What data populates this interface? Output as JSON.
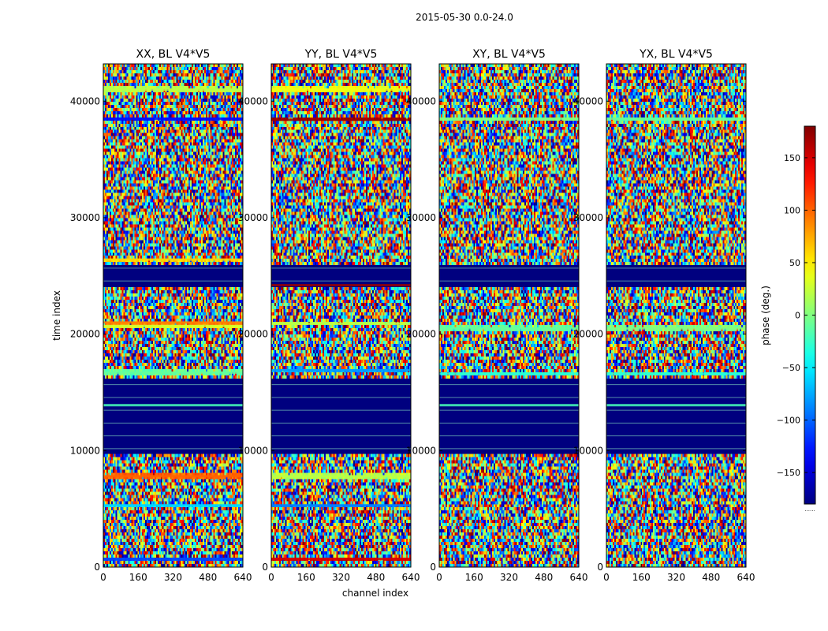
{
  "figure": {
    "suptitle": "2015-05-30 0.0-24.0"
  },
  "chart_data": {
    "type": "heatmap",
    "quantity": "phase",
    "xlabel": "channel index",
    "ylabel": "time index",
    "xlim": [
      0,
      640
    ],
    "ylim": [
      0,
      43200
    ],
    "xticks": [
      0,
      160,
      320,
      480,
      640
    ],
    "yticks": [
      0,
      10000,
      20000,
      30000,
      40000
    ],
    "colormap": "jet",
    "colorbar": {
      "label": "phase (deg.)",
      "range": [
        -180,
        180
      ],
      "ticks": [
        -150,
        -100,
        -50,
        0,
        50,
        100,
        150
      ],
      "tick_labels": [
        "−150",
        "−100",
        "−50",
        "0",
        "50",
        "100",
        "150"
      ],
      "extra_label": "......"
    },
    "masked_value_color": "#00007f",
    "masked_time_ranges": [
      [
        9700,
        16200
      ],
      [
        24100,
        26000
      ]
    ],
    "panels": [
      {
        "title": "XX, BL V4*V5",
        "polarization": "XX",
        "stripes": [
          {
            "t": 41000,
            "phase": 20
          },
          {
            "t": 38500,
            "phase": -130
          },
          {
            "t": 26400,
            "phase": 60
          },
          {
            "t": 21000,
            "phase": 90
          },
          {
            "t": 20700,
            "phase": 30
          },
          {
            "t": 16700,
            "phase": -10
          },
          {
            "t": 13900,
            "phase": -20
          },
          {
            "t": 7800,
            "phase": 100
          },
          {
            "t": 5300,
            "phase": -60
          },
          {
            "t": 700,
            "phase": -110
          }
        ]
      },
      {
        "title": "YY, BL V4*V5",
        "polarization": "YY",
        "stripes": [
          {
            "t": 41000,
            "phase": 40
          },
          {
            "t": 38400,
            "phase": 170
          },
          {
            "t": 24200,
            "phase": 170
          },
          {
            "t": 20900,
            "phase": 20
          },
          {
            "t": 16900,
            "phase": -80
          },
          {
            "t": 7800,
            "phase": 20
          },
          {
            "t": 5300,
            "phase": -90
          },
          {
            "t": 700,
            "phase": 150
          }
        ]
      },
      {
        "title": "XY, BL V4*V5",
        "polarization": "XY",
        "stripes": [
          {
            "t": 38500,
            "phase": 0
          },
          {
            "t": 20500,
            "phase": -10
          },
          {
            "t": 16600,
            "phase": -30
          },
          {
            "t": 13900,
            "phase": -20
          }
        ]
      },
      {
        "title": "YX, BL V4*V5",
        "polarization": "YX",
        "stripes": [
          {
            "t": 38500,
            "phase": -10
          },
          {
            "t": 20500,
            "phase": 0
          },
          {
            "t": 16600,
            "phase": -30
          },
          {
            "t": 13900,
            "phase": -20
          }
        ]
      }
    ]
  }
}
